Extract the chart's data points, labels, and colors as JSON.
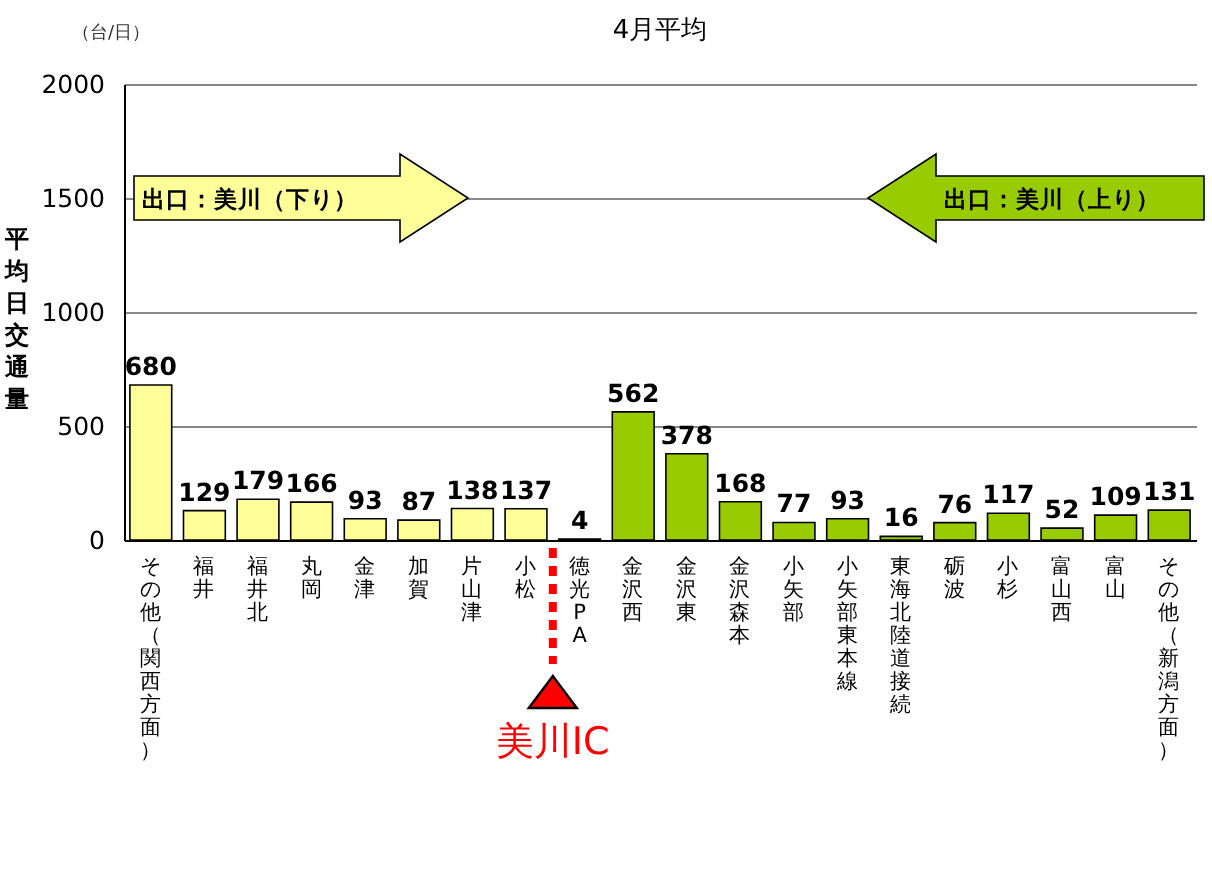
{
  "chart_data": {
    "type": "bar",
    "title": "4月平均",
    "ylabel": "平均日交通量",
    "annotations": [
      "（台/日）",
      "出口：美川（下り）",
      "出口：美川（上り）",
      "美川IC"
    ],
    "categories": [
      "その他（関西方面）",
      "福井",
      "福井北",
      "丸岡",
      "金津",
      "加賀",
      "片山津",
      "小松",
      "徳光PA",
      "金沢西",
      "金沢東",
      "金沢森本",
      "小矢部",
      "小矢部東本線",
      "東海北陸道接続",
      "砺波",
      "小杉",
      "富山西",
      "富山",
      "その他（新潟方面）"
    ],
    "values": [
      680,
      129,
      179,
      166,
      93,
      87,
      138,
      137,
      4,
      562,
      378,
      168,
      77,
      93,
      16,
      76,
      117,
      52,
      109,
      131
    ],
    "colors": [
      "#ffff99",
      "#ffff99",
      "#ffff99",
      "#ffff99",
      "#ffff99",
      "#ffff99",
      "#ffff99",
      "#ffff99",
      "#ffff99",
      "#99cc00",
      "#99cc00",
      "#99cc00",
      "#99cc00",
      "#99cc00",
      "#99cc00",
      "#99cc00",
      "#99cc00",
      "#99cc00",
      "#99cc00",
      "#99cc00"
    ],
    "ylim": [
      0,
      2000
    ],
    "yticks": [
      0,
      500,
      1000,
      1500,
      2000
    ],
    "grid": "y",
    "data_labels": true
  }
}
